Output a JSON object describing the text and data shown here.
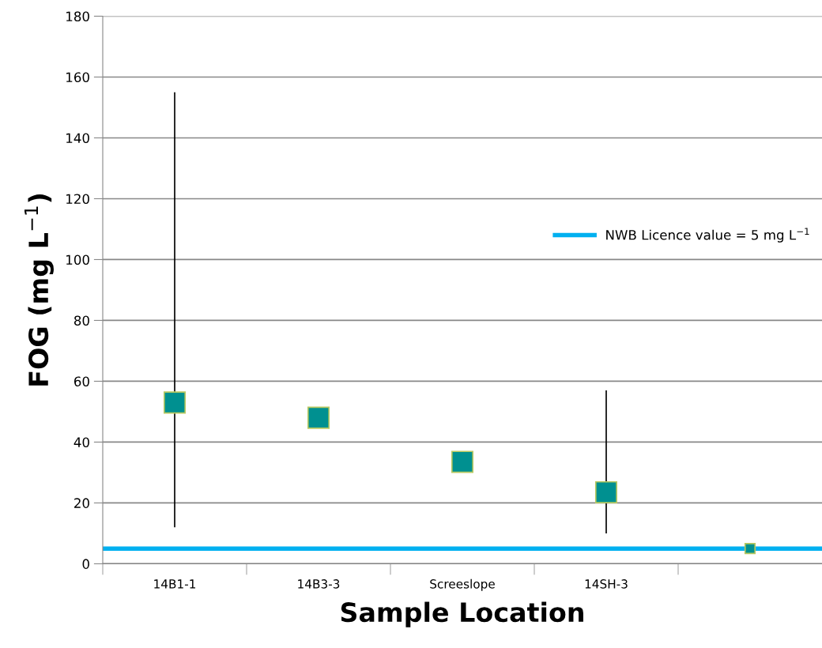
{
  "chart_data": {
    "type": "scatter",
    "xlabel": "Sample Location",
    "ylabel": "FOG (mg L$^{−1}$)",
    "categories": [
      "14B1-1",
      "14B3-3",
      "Screeslope",
      "14SH-3",
      null
    ],
    "series": [
      {
        "color": "#009090",
        "values": [
          53,
          48,
          33.5,
          23.5,
          null
        ],
        "errors": [
          [
            12,
            155
          ],
          null,
          null,
          [
            10,
            57
          ],
          null
        ]
      },
      {
        "color": "#009090",
        "values": [
          null,
          null,
          null,
          null,
          5
        ]
      }
    ],
    "ref_lines": [
      {
        "axis": "y",
        "value": 5,
        "label": "NWB Licence value = 5 mg L$^{−1}$",
        "color": "#00b0f0"
      }
    ],
    "ylim": [
      0,
      180
    ],
    "yticks": [
      0,
      20,
      40,
      60,
      80,
      100,
      120,
      140,
      160,
      180
    ],
    "grid": "y",
    "marker": "square"
  }
}
